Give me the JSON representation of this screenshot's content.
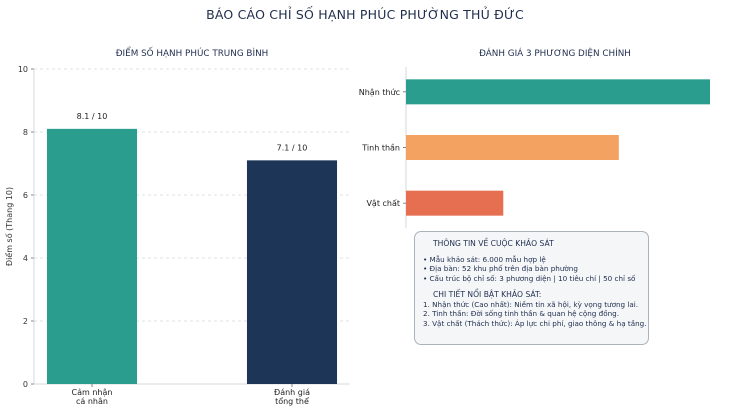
{
  "page_title": "BÁO CÁO CHỈ SỐ HẠNH PHÚC PHƯỜNG THỦ ĐỨC",
  "colors": {
    "title": "#1f2d4d",
    "teal": "#2a9d8f",
    "navy": "#1d3557",
    "orange": "#f4a261",
    "red": "#e76f51"
  },
  "chart_data": [
    {
      "type": "bar",
      "title": "ĐIỂM SỐ HẠNH PHÚC TRUNG BÌNH",
      "categories": [
        "Cảm nhận\ncá nhân",
        "Đánh giá\ntổng thể"
      ],
      "values": [
        8.1,
        7.1
      ],
      "data_labels": [
        "8.1 / 10",
        "7.1 / 10"
      ],
      "bar_colors": [
        "#2a9d8f",
        "#1d3557"
      ],
      "xlabel": "",
      "ylabel": "Điểm số (Thang 10)",
      "ylim": [
        0,
        10
      ],
      "yticks": [
        0,
        2,
        4,
        6,
        8,
        10
      ],
      "grid": true
    },
    {
      "type": "bar",
      "orientation": "horizontal",
      "title": "ĐÁNH GIÁ 3 PHƯƠNG DIỆN CHÍNH",
      "categories": [
        "Nhận thức",
        "Tinh thần",
        "Vật chất"
      ],
      "values": [
        1.0,
        0.7,
        0.32
      ],
      "bar_colors": [
        "#2a9d8f",
        "#f4a261",
        "#e76f51"
      ],
      "xlabel": "",
      "ylabel": "",
      "grid": false
    }
  ],
  "info_box": {
    "heading": "THÔNG TIN VỀ CUỘC KHẢO SÁT",
    "lines": [
      "• Mẫu khảo sát: 6.000 mẫu hợp lệ",
      "• Địa bàn: 52 khu phố trên địa bàn phường",
      "• Cấu trúc bộ chỉ số: 3 phương diện | 10 tiêu chí | 50 chỉ số"
    ],
    "heading2": "CHI TIẾT NỔI BẬT KHẢO SÁT:",
    "lines2": [
      "1. Nhận thức (Cao nhất): Niềm tin xã hội, kỳ vọng tương lai.",
      "2. Tinh thần: Đời sống tinh thần & quan hệ cộng đồng.",
      "3. Vật chất (Thách thức): Áp lực chi phí, giao thông & hạ tầng."
    ]
  }
}
